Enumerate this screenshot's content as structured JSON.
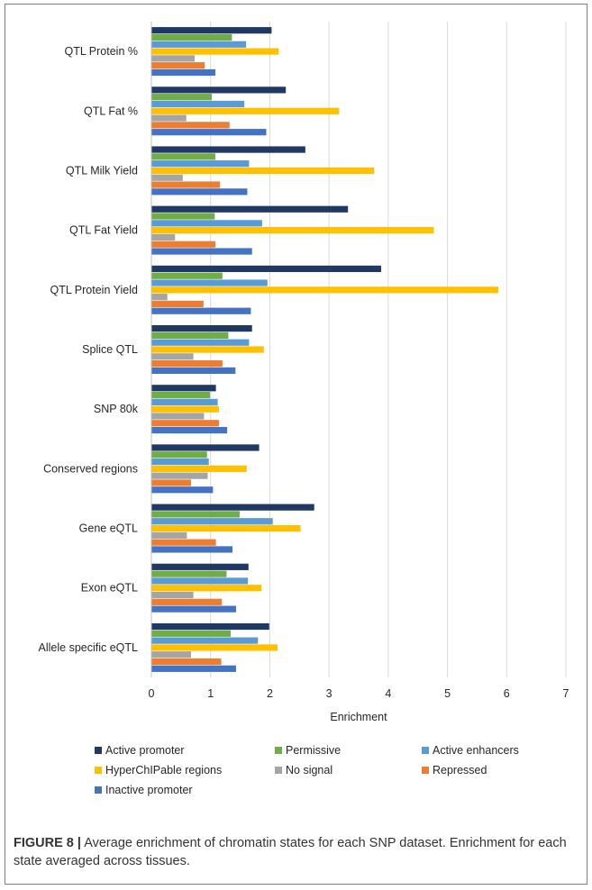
{
  "chart_data": {
    "type": "bar",
    "orientation": "horizontal",
    "categories": [
      "QTL Protein %",
      "QTL Fat %",
      "QTL Milk Yield",
      "QTL Fat Yield",
      "QTL Protein Yield",
      "Splice QTL",
      "SNP 80k",
      "Conserved regions",
      "Gene eQTL",
      "Exon eQTL",
      "Allele specific eQTL"
    ],
    "series": [
      {
        "name": "Active promoter",
        "color": "#203864",
        "values": [
          2.03,
          2.27,
          2.6,
          3.32,
          3.88,
          1.7,
          1.09,
          1.82,
          2.75,
          1.64,
          1.99
        ]
      },
      {
        "name": "Permissive",
        "color": "#70ad47",
        "values": [
          1.36,
          1.02,
          1.08,
          1.07,
          1.2,
          1.3,
          0.99,
          0.94,
          1.49,
          1.27,
          1.34
        ]
      },
      {
        "name": "Active enhancers",
        "color": "#5b9bd5",
        "values": [
          1.6,
          1.57,
          1.65,
          1.87,
          1.96,
          1.65,
          1.12,
          0.97,
          2.05,
          1.63,
          1.8
        ]
      },
      {
        "name": "HyperChIPable regions",
        "color": "#ffc000",
        "values": [
          2.15,
          3.17,
          3.76,
          4.77,
          5.86,
          1.9,
          1.14,
          1.61,
          2.52,
          1.86,
          2.13
        ]
      },
      {
        "name": "No signal",
        "color": "#a5a5a5",
        "values": [
          0.73,
          0.59,
          0.53,
          0.4,
          0.27,
          0.71,
          0.89,
          0.95,
          0.6,
          0.71,
          0.67
        ]
      },
      {
        "name": "Repressed",
        "color": "#ed7d31",
        "values": [
          0.9,
          1.32,
          1.16,
          1.08,
          0.88,
          1.2,
          1.14,
          0.67,
          1.09,
          1.19,
          1.18
        ]
      },
      {
        "name": "Inactive promoter",
        "color": "#4472c4",
        "values": [
          1.08,
          1.94,
          1.62,
          1.7,
          1.68,
          1.42,
          1.28,
          1.04,
          1.37,
          1.43,
          1.43
        ]
      }
    ],
    "xlabel": "Enrichment",
    "ylabel": "",
    "xlim": [
      0,
      7
    ],
    "xticks": [
      "0",
      "1",
      "2",
      "3",
      "4",
      "5",
      "6",
      "7"
    ],
    "grid": true,
    "legend_position": "bottom"
  },
  "caption": {
    "label": "FIGURE 8 |",
    "text": " Average enrichment of chromatin states for each SNP dataset. Enrichment for each state averaged across tissues."
  }
}
